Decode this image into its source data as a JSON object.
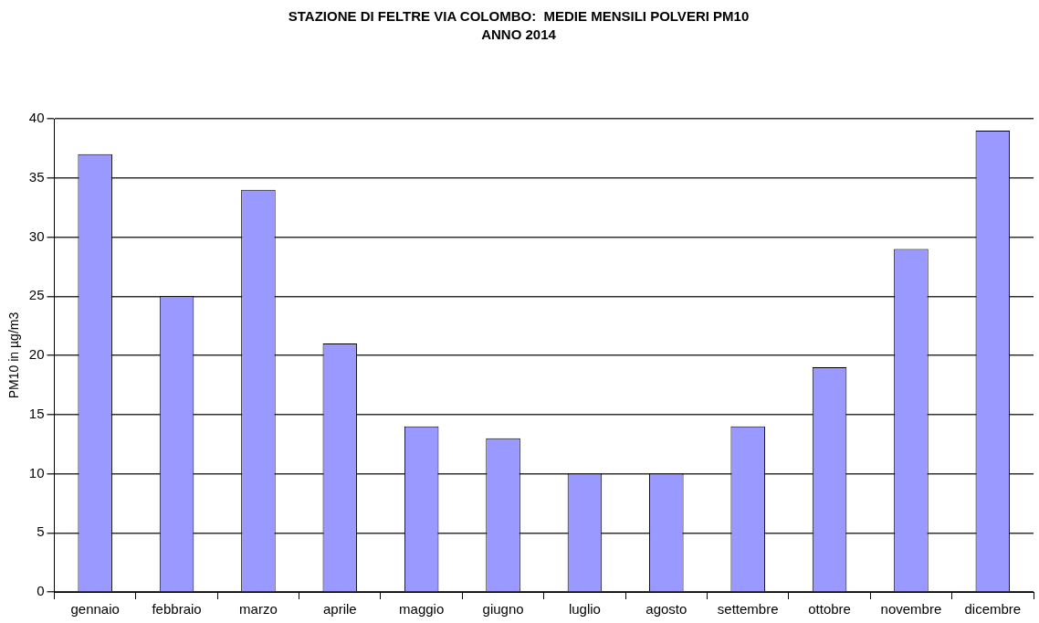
{
  "chart_data": {
    "type": "bar",
    "title": "STAZIONE DI FELTRE VIA COLOMBO:  MEDIE MENSILI POLVERI PM10",
    "subtitle": "ANNO 2014",
    "ylabel": "PM10 in µg/m3",
    "categories": [
      "gennaio",
      "febbraio",
      "marzo",
      "aprile",
      "maggio",
      "giugno",
      "luglio",
      "agosto",
      "settembre",
      "ottobre",
      "novembre",
      "dicembre"
    ],
    "values": [
      37,
      25,
      34,
      21,
      14,
      13,
      10,
      10,
      14,
      19,
      29,
      39
    ],
    "color": "#9999ff",
    "ylim": [
      0,
      40
    ],
    "yticks": [
      0,
      5,
      10,
      15,
      20,
      25,
      30,
      35,
      40
    ],
    "grid": "y"
  }
}
